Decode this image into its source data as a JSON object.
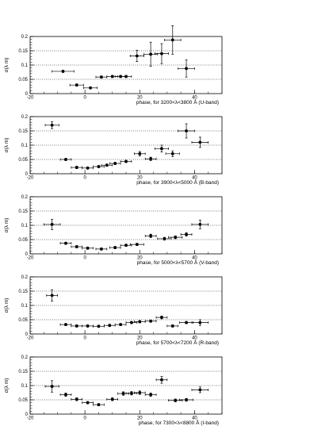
{
  "chart_data": [
    {
      "type": "scatter",
      "xlabel": "phase, for 3200<λ<3800 Å (U-band)",
      "ylabel": "σ(λ m)",
      "xlim": [
        -20,
        50
      ],
      "ylim": [
        0,
        0.2
      ],
      "xticks": [
        -20,
        0,
        20,
        40
      ],
      "yticks": [
        0,
        0.05,
        0.1,
        0.15,
        0.2
      ],
      "ytick_labels": [
        "0",
        "0.05",
        "0.1",
        "0.15",
        "0.2"
      ],
      "grid_y": [
        0.05,
        0.1,
        0.15
      ],
      "points": [
        {
          "x": -8,
          "y": 0.078,
          "xerr": 4,
          "yerr": 0.004
        },
        {
          "x": -3,
          "y": 0.03,
          "xerr": 2.5,
          "yerr": 0.004
        },
        {
          "x": 2,
          "y": 0.02,
          "xerr": 2.5,
          "yerr": 0.003
        },
        {
          "x": 6,
          "y": 0.058,
          "xerr": 2,
          "yerr": 0.004
        },
        {
          "x": 10,
          "y": 0.06,
          "xerr": 2,
          "yerr": 0.004
        },
        {
          "x": 13,
          "y": 0.06,
          "xerr": 2,
          "yerr": 0.004
        },
        {
          "x": 15,
          "y": 0.06,
          "xerr": 2,
          "yerr": 0.004
        },
        {
          "x": 19,
          "y": 0.132,
          "xerr": 2.5,
          "yerr": 0.02
        },
        {
          "x": 24,
          "y": 0.138,
          "xerr": 2.5,
          "yerr": 0.042
        },
        {
          "x": 28,
          "y": 0.14,
          "xerr": 2.5,
          "yerr": 0.035
        },
        {
          "x": 32,
          "y": 0.188,
          "xerr": 3,
          "yerr": 0.05
        },
        {
          "x": 37,
          "y": 0.088,
          "xerr": 3,
          "yerr": 0.03
        }
      ]
    },
    {
      "type": "scatter",
      "xlabel": "phase, for 3900<λ<5000 Å (B-band)",
      "ylabel": "σ(λ m)",
      "xlim": [
        -20,
        50
      ],
      "ylim": [
        0,
        0.2
      ],
      "xticks": [
        -20,
        0,
        20,
        40
      ],
      "yticks": [
        0,
        0.05,
        0.1,
        0.15,
        0.2
      ],
      "ytick_labels": [
        "0",
        "0.05",
        "0.1",
        "0.15",
        "0.2"
      ],
      "grid_y": [
        0.05,
        0.1,
        0.15
      ],
      "points": [
        {
          "x": -12,
          "y": 0.17,
          "xerr": 2.5,
          "yerr": 0.012
        },
        {
          "x": -7,
          "y": 0.05,
          "xerr": 2,
          "yerr": 0.004
        },
        {
          "x": -3,
          "y": 0.022,
          "xerr": 2,
          "yerr": 0.004
        },
        {
          "x": 1,
          "y": 0.02,
          "xerr": 2,
          "yerr": 0.004
        },
        {
          "x": 5,
          "y": 0.025,
          "xerr": 2,
          "yerr": 0.004
        },
        {
          "x": 8,
          "y": 0.03,
          "xerr": 2,
          "yerr": 0.004
        },
        {
          "x": 11,
          "y": 0.036,
          "xerr": 2,
          "yerr": 0.004
        },
        {
          "x": 15,
          "y": 0.043,
          "xerr": 2,
          "yerr": 0.004
        },
        {
          "x": 20,
          "y": 0.07,
          "xerr": 2,
          "yerr": 0.008
        },
        {
          "x": 24,
          "y": 0.052,
          "xerr": 2,
          "yerr": 0.006
        },
        {
          "x": 28,
          "y": 0.088,
          "xerr": 2.5,
          "yerr": 0.012
        },
        {
          "x": 32,
          "y": 0.07,
          "xerr": 2.5,
          "yerr": 0.01
        },
        {
          "x": 37,
          "y": 0.15,
          "xerr": 3,
          "yerr": 0.025
        },
        {
          "x": 42,
          "y": 0.11,
          "xerr": 3,
          "yerr": 0.018
        }
      ]
    },
    {
      "type": "scatter",
      "xlabel": "phase, for 5000<λ<5700 Å (V-band)",
      "ylabel": "σ(λ m)",
      "xlim": [
        -20,
        50
      ],
      "ylim": [
        0,
        0.2
      ],
      "xticks": [
        -20,
        0,
        20,
        40
      ],
      "yticks": [
        0,
        0.05,
        0.1,
        0.15,
        0.2
      ],
      "ytick_labels": [
        "0",
        "0.05",
        "0.1",
        "0.15",
        "0.2"
      ],
      "grid_y": [
        0.05,
        0.1,
        0.15
      ],
      "points": [
        {
          "x": -12,
          "y": 0.103,
          "xerr": 3,
          "yerr": 0.018
        },
        {
          "x": -7,
          "y": 0.037,
          "xerr": 2,
          "yerr": 0.004
        },
        {
          "x": -3,
          "y": 0.025,
          "xerr": 2,
          "yerr": 0.004
        },
        {
          "x": 1,
          "y": 0.02,
          "xerr": 2,
          "yerr": 0.004
        },
        {
          "x": 6,
          "y": 0.017,
          "xerr": 2,
          "yerr": 0.004
        },
        {
          "x": 11,
          "y": 0.022,
          "xerr": 2,
          "yerr": 0.004
        },
        {
          "x": 15,
          "y": 0.03,
          "xerr": 2,
          "yerr": 0.004
        },
        {
          "x": 19,
          "y": 0.033,
          "xerr": 2.5,
          "yerr": 0.004
        },
        {
          "x": 24,
          "y": 0.063,
          "xerr": 2,
          "yerr": 0.006
        },
        {
          "x": 29,
          "y": 0.053,
          "xerr": 2.5,
          "yerr": 0.005
        },
        {
          "x": 33,
          "y": 0.058,
          "xerr": 2.5,
          "yerr": 0.005
        },
        {
          "x": 37,
          "y": 0.068,
          "xerr": 2,
          "yerr": 0.006
        },
        {
          "x": 42,
          "y": 0.103,
          "xerr": 3,
          "yerr": 0.015
        }
      ]
    },
    {
      "type": "scatter",
      "xlabel": "phase, for 5700<λ<7200 Å (R-band)",
      "ylabel": "σ(λ m)",
      "xlim": [
        -20,
        50
      ],
      "ylim": [
        0,
        0.2
      ],
      "xticks": [
        -20,
        0,
        20,
        40
      ],
      "yticks": [
        0,
        0.05,
        0.1,
        0.15,
        0.2
      ],
      "ytick_labels": [
        "0",
        "0.05",
        "0.1",
        "0.15",
        "0.2"
      ],
      "grid_y": [
        0.05,
        0.1,
        0.15
      ],
      "points": [
        {
          "x": -12,
          "y": 0.135,
          "xerr": 2,
          "yerr": 0.02
        },
        {
          "x": -7,
          "y": 0.033,
          "xerr": 2,
          "yerr": 0.004
        },
        {
          "x": -3,
          "y": 0.028,
          "xerr": 2,
          "yerr": 0.004
        },
        {
          "x": 1,
          "y": 0.028,
          "xerr": 2,
          "yerr": 0.004
        },
        {
          "x": 5,
          "y": 0.027,
          "xerr": 2,
          "yerr": 0.004
        },
        {
          "x": 9,
          "y": 0.03,
          "xerr": 2,
          "yerr": 0.004
        },
        {
          "x": 13,
          "y": 0.033,
          "xerr": 2,
          "yerr": 0.004
        },
        {
          "x": 17,
          "y": 0.04,
          "xerr": 2,
          "yerr": 0.004
        },
        {
          "x": 20,
          "y": 0.043,
          "xerr": 2,
          "yerr": 0.004
        },
        {
          "x": 24,
          "y": 0.045,
          "xerr": 2,
          "yerr": 0.004
        },
        {
          "x": 28,
          "y": 0.058,
          "xerr": 2,
          "yerr": 0.005
        },
        {
          "x": 32,
          "y": 0.028,
          "xerr": 2,
          "yerr": 0.004
        },
        {
          "x": 37,
          "y": 0.04,
          "xerr": 2.5,
          "yerr": 0.004
        },
        {
          "x": 42,
          "y": 0.04,
          "xerr": 3,
          "yerr": 0.01
        }
      ]
    },
    {
      "type": "scatter",
      "xlabel": "phase, for 7300<λ<8800 Å (I-band)",
      "ylabel": "σ(λ m)",
      "xlim": [
        -20,
        50
      ],
      "ylim": [
        0,
        0.2
      ],
      "xticks": [
        -20,
        0,
        20,
        40
      ],
      "yticks": [
        0,
        0.05,
        0.1,
        0.15,
        0.2
      ],
      "ytick_labels": [
        "0",
        "0.05",
        "0.1",
        "0.15",
        "0.2"
      ],
      "grid_y": [
        0.05,
        0.1,
        0.15
      ],
      "points": [
        {
          "x": -12,
          "y": 0.097,
          "xerr": 2.5,
          "yerr": 0.02
        },
        {
          "x": -7,
          "y": 0.068,
          "xerr": 2,
          "yerr": 0.006
        },
        {
          "x": -3,
          "y": 0.052,
          "xerr": 2,
          "yerr": 0.005
        },
        {
          "x": 1,
          "y": 0.04,
          "xerr": 2,
          "yerr": 0.004
        },
        {
          "x": 5,
          "y": 0.033,
          "xerr": 2,
          "yerr": 0.004
        },
        {
          "x": 10,
          "y": 0.052,
          "xerr": 2,
          "yerr": 0.005
        },
        {
          "x": 14,
          "y": 0.072,
          "xerr": 2,
          "yerr": 0.006
        },
        {
          "x": 17,
          "y": 0.073,
          "xerr": 2,
          "yerr": 0.006
        },
        {
          "x": 20,
          "y": 0.075,
          "xerr": 2,
          "yerr": 0.006
        },
        {
          "x": 24,
          "y": 0.068,
          "xerr": 2,
          "yerr": 0.006
        },
        {
          "x": 28,
          "y": 0.12,
          "xerr": 2,
          "yerr": 0.012
        },
        {
          "x": 33,
          "y": 0.048,
          "xerr": 2.5,
          "yerr": 0.005
        },
        {
          "x": 37,
          "y": 0.05,
          "xerr": 2.5,
          "yerr": 0.005
        },
        {
          "x": 42,
          "y": 0.085,
          "xerr": 3,
          "yerr": 0.01
        }
      ]
    }
  ]
}
